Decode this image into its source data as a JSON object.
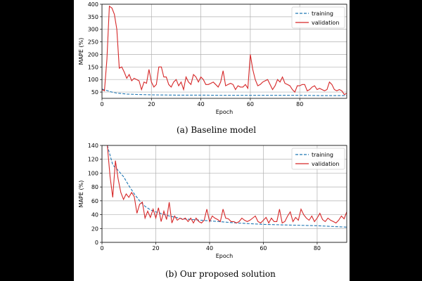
{
  "chart_data": [
    {
      "type": "line",
      "caption": "(a) Baseline model",
      "xlabel": "Epoch",
      "ylabel": "MAPE (%)",
      "xlim": [
        0,
        99
      ],
      "ylim": [
        25,
        400
      ],
      "xticks": [
        0,
        20,
        40,
        60,
        80
      ],
      "yticks": [
        50,
        100,
        150,
        200,
        250,
        300,
        350,
        400
      ],
      "grid": true,
      "legend_position": "top-right",
      "series": [
        {
          "name": "training",
          "color": "#1f77b4",
          "style": "dashed",
          "x": [
            0,
            2,
            4,
            6,
            8,
            10,
            15,
            20,
            30,
            40,
            50,
            60,
            70,
            80,
            90,
            99
          ],
          "y": [
            62,
            56,
            50,
            46,
            44,
            42,
            40,
            39,
            38,
            38,
            37,
            37,
            37,
            37,
            36,
            36
          ]
        },
        {
          "name": "validation",
          "color": "#d62728",
          "style": "solid",
          "x": [
            0,
            1,
            2,
            3,
            4,
            5,
            6,
            7,
            8,
            9,
            10,
            11,
            12,
            13,
            14,
            15,
            16,
            17,
            18,
            19,
            20,
            21,
            22,
            23,
            24,
            25,
            26,
            27,
            28,
            29,
            30,
            31,
            32,
            33,
            34,
            35,
            36,
            37,
            38,
            39,
            40,
            41,
            42,
            43,
            44,
            45,
            46,
            47,
            48,
            49,
            50,
            51,
            52,
            53,
            54,
            55,
            56,
            57,
            58,
            59,
            60,
            61,
            62,
            63,
            64,
            65,
            66,
            67,
            68,
            69,
            70,
            71,
            72,
            73,
            74,
            75,
            76,
            77,
            78,
            79,
            80,
            81,
            82,
            83,
            84,
            85,
            86,
            87,
            88,
            89,
            90,
            91,
            92,
            93,
            94,
            95,
            96,
            97,
            98,
            99
          ],
          "y": [
            60,
            55,
            180,
            392,
            385,
            360,
            300,
            145,
            150,
            130,
            105,
            120,
            95,
            105,
            100,
            95,
            60,
            90,
            85,
            140,
            90,
            70,
            80,
            150,
            150,
            110,
            110,
            80,
            70,
            90,
            100,
            75,
            90,
            60,
            110,
            90,
            80,
            120,
            110,
            90,
            110,
            100,
            80,
            80,
            85,
            90,
            80,
            70,
            90,
            135,
            75,
            80,
            85,
            80,
            60,
            75,
            70,
            70,
            80,
            65,
            200,
            140,
            100,
            75,
            80,
            90,
            95,
            100,
            80,
            60,
            75,
            100,
            90,
            110,
            85,
            80,
            75,
            60,
            50,
            75,
            75,
            80,
            80,
            55,
            60,
            70,
            75,
            60,
            65,
            60,
            55,
            60,
            90,
            80,
            60,
            55,
            60,
            55,
            40,
            45
          ]
        }
      ]
    },
    {
      "type": "line",
      "caption": "(b) Our proposed solution",
      "xlabel": "Epoch",
      "ylabel": "MAPE (%)",
      "xlim": [
        0,
        91
      ],
      "ylim": [
        0,
        140
      ],
      "xticks": [
        0,
        20,
        40,
        60,
        80
      ],
      "yticks": [
        0,
        20,
        40,
        60,
        80,
        100,
        120,
        140
      ],
      "grid": true,
      "legend_position": "top-right",
      "series": [
        {
          "name": "training",
          "color": "#1f77b4",
          "style": "dashed",
          "x": [
            2,
            4,
            6,
            8,
            10,
            12,
            14,
            16,
            18,
            20,
            25,
            30,
            40,
            50,
            60,
            70,
            80,
            91
          ],
          "y": [
            140,
            112,
            104,
            95,
            82,
            70,
            60,
            52,
            47,
            44,
            38,
            34,
            31,
            28,
            26,
            25,
            24,
            22
          ]
        },
        {
          "name": "validation",
          "color": "#d62728",
          "style": "solid",
          "x": [
            2,
            3,
            4,
            5,
            6,
            7,
            8,
            9,
            10,
            11,
            12,
            13,
            14,
            15,
            16,
            17,
            18,
            19,
            20,
            21,
            22,
            23,
            24,
            25,
            26,
            27,
            28,
            29,
            30,
            31,
            32,
            33,
            34,
            35,
            36,
            37,
            38,
            39,
            40,
            41,
            42,
            43,
            44,
            45,
            46,
            47,
            48,
            49,
            50,
            51,
            52,
            53,
            54,
            55,
            56,
            57,
            58,
            59,
            60,
            61,
            62,
            63,
            64,
            65,
            66,
            67,
            68,
            69,
            70,
            71,
            72,
            73,
            74,
            75,
            76,
            77,
            78,
            79,
            80,
            81,
            82,
            83,
            84,
            85,
            86,
            87,
            88,
            89,
            90,
            91
          ],
          "y": [
            140,
            95,
            65,
            118,
            92,
            72,
            62,
            70,
            65,
            72,
            66,
            42,
            55,
            58,
            35,
            45,
            36,
            48,
            35,
            50,
            30,
            45,
            33,
            58,
            28,
            38,
            32,
            35,
            33,
            35,
            30,
            35,
            28,
            35,
            30,
            28,
            32,
            48,
            30,
            38,
            35,
            33,
            30,
            48,
            35,
            34,
            30,
            30,
            28,
            30,
            35,
            32,
            30,
            32,
            35,
            38,
            30,
            28,
            32,
            36,
            28,
            35,
            30,
            30,
            48,
            28,
            30,
            38,
            44,
            30,
            36,
            32,
            48,
            40,
            35,
            32,
            38,
            30,
            35,
            42,
            33,
            30,
            35,
            32,
            30,
            28,
            32,
            38,
            34,
            44
          ]
        }
      ]
    }
  ]
}
